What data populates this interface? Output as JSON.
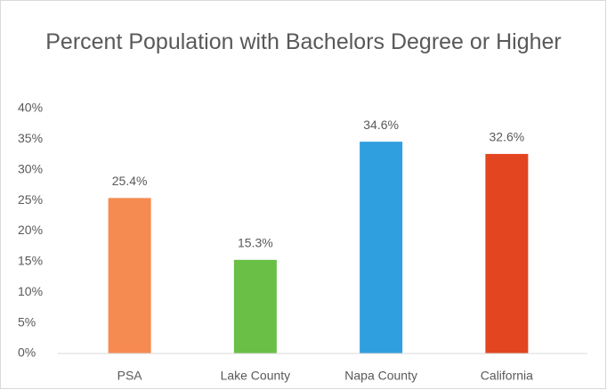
{
  "chart_data": {
    "type": "bar",
    "title": "Percent Population with Bachelors Degree or Higher",
    "categories": [
      "PSA",
      "Lake County",
      "Napa County",
      "California"
    ],
    "values": [
      25.4,
      15.3,
      34.6,
      32.6
    ],
    "value_labels": [
      "25.4%",
      "15.3%",
      "34.6%",
      "32.6%"
    ],
    "colors": [
      "#f68b52",
      "#6abf47",
      "#309fe0",
      "#e2451f"
    ],
    "ylim": [
      0,
      40
    ],
    "yticks": [
      {
        "value": 0,
        "label": "0%"
      },
      {
        "value": 5,
        "label": "5%"
      },
      {
        "value": 10,
        "label": "10%"
      },
      {
        "value": 15,
        "label": "15%"
      },
      {
        "value": 20,
        "label": "20%"
      },
      {
        "value": 25,
        "label": "25%"
      },
      {
        "value": 30,
        "label": "30%"
      },
      {
        "value": 35,
        "label": "35%"
      },
      {
        "value": 40,
        "label": "40%"
      }
    ],
    "grid": false
  }
}
